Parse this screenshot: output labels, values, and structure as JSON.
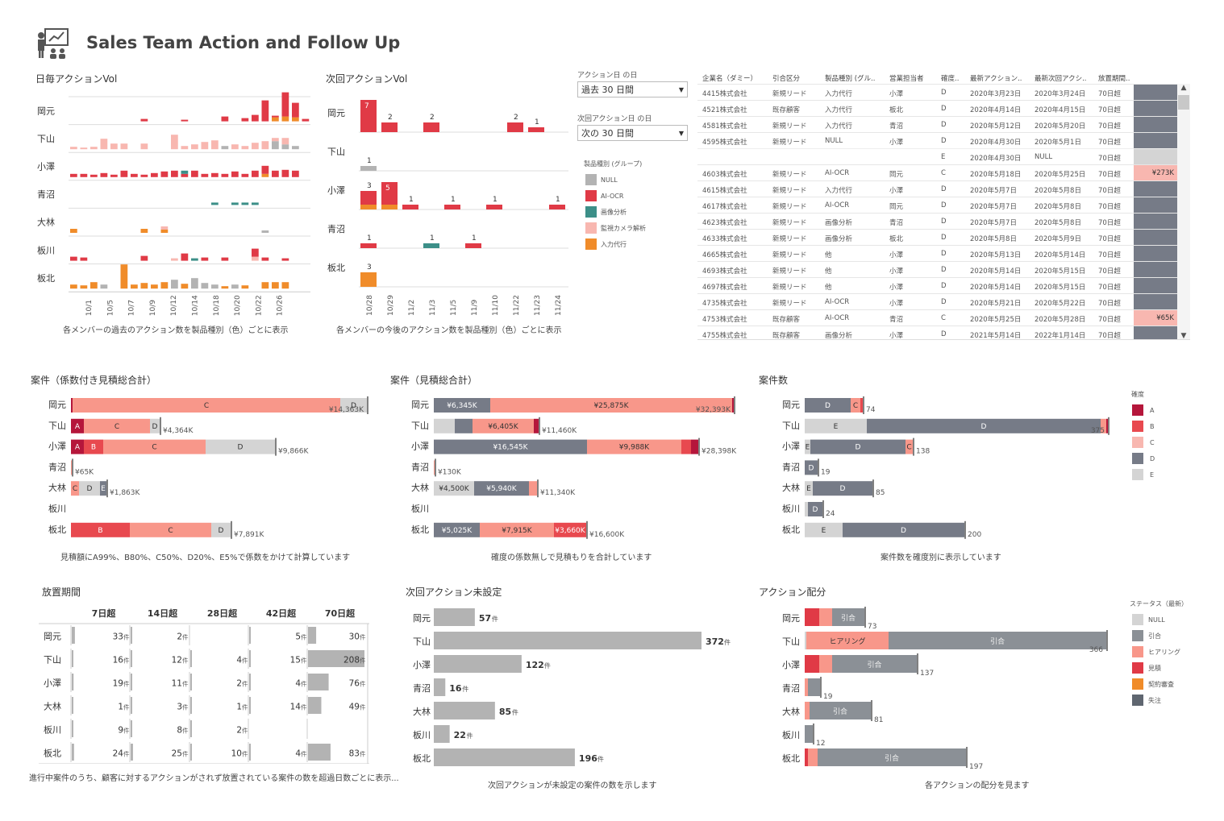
{
  "header": {
    "title": "Sales Team Action and Follow Up"
  },
  "colors": {
    "null": "#b3b3b3",
    "ai_ocr": "#e03a46",
    "image": "#3c8f88",
    "camera": "#f8b7b0",
    "input": "#f08c2a",
    "rankA": "#b5163b",
    "rankB": "#e8494f",
    "rankC": "#f8978a",
    "rankD": "#767b87",
    "rankE": "#d4d4d4",
    "bar_gray": "#b3b3b3",
    "status_hiring": "#f8978a",
    "status_hikiai": "#8b9096"
  },
  "members": [
    "岡元",
    "下山",
    "小澤",
    "青沼",
    "大林",
    "板川",
    "板北"
  ],
  "daily": {
    "title": "日毎アクションVol",
    "caption": "各メンバーの過去のアクション数を製品種別（色）ごとに表示",
    "dates": [
      "10/1",
      "10/5",
      "10/7",
      "10/9",
      "10/12",
      "10/14",
      "10/18",
      "10/20",
      "10/22",
      "10/26"
    ]
  },
  "next": {
    "title": "次回アクションVol",
    "caption": "各メンバーの今後のアクション数を製品種別（色）ごとに表示",
    "dates": [
      "10/28",
      "10/29",
      "11/2",
      "11/3",
      "11/5",
      "11/9",
      "11/10",
      "11/22",
      "11/23",
      "11/24"
    ],
    "labels": [
      [
        [
          "7",
          0
        ],
        [
          "2",
          1
        ],
        [
          "2",
          3
        ],
        [
          "2",
          7
        ],
        [
          "1",
          8
        ]
      ],
      [
        [
          "1",
          0
        ]
      ],
      [
        [
          "3",
          0
        ],
        [
          "5",
          1
        ],
        [
          "1",
          2
        ],
        [
          "1",
          4
        ],
        [
          "1",
          6
        ],
        [
          "1",
          9
        ]
      ],
      [
        [
          "1",
          0
        ],
        [
          "1",
          3
        ],
        [
          "1",
          5
        ]
      ],
      [
        [
          "3",
          0
        ]
      ]
    ]
  },
  "filters": {
    "action_label": "アクション日 の日",
    "action_value": "過去 30 日間",
    "next_label": "次回アクション日 の日",
    "next_value": "次の 30 日間",
    "legend_title": "製品種別 (グループ)",
    "legend": [
      "NULL",
      "AI-OCR",
      "画像分析",
      "監視カメラ解析",
      "入力代行"
    ]
  },
  "table": {
    "headers": [
      "企業名（ダミー）",
      "引合区分",
      "製品種別 (グル..",
      "営業担当者",
      "確度..",
      "最新アクション..",
      "最新次回アクシ..",
      "放置期間.."
    ],
    "rows": [
      [
        "4415株式会社",
        "新規リード",
        "入力代行",
        "小澤",
        "D",
        "2020年3月23日",
        "2020年3月24日",
        "70日超",
        ""
      ],
      [
        "4521株式会社",
        "既存顧客",
        "入力代行",
        "板北",
        "D",
        "2020年4月14日",
        "2020年4月15日",
        "70日超",
        ""
      ],
      [
        "4581株式会社",
        "新規リード",
        "入力代行",
        "青沼",
        "D",
        "2020年5月12日",
        "2020年5月20日",
        "70日超",
        ""
      ],
      [
        "4595株式会社",
        "新規リード",
        "NULL",
        "小澤",
        "D",
        "2020年4月30日",
        "2020年5月1日",
        "70日超",
        ""
      ],
      [
        "",
        "",
        "",
        "",
        "E",
        "2020年4月30日",
        "NULL",
        "70日超",
        ""
      ],
      [
        "4603株式会社",
        "新規リード",
        "AI-OCR",
        "岡元",
        "C",
        "2020年5月18日",
        "2020年5月25日",
        "70日超",
        "¥273K"
      ],
      [
        "4615株式会社",
        "新規リード",
        "入力代行",
        "小澤",
        "D",
        "2020年5月7日",
        "2020年5月8日",
        "70日超",
        ""
      ],
      [
        "4617株式会社",
        "新規リード",
        "AI-OCR",
        "岡元",
        "D",
        "2020年5月7日",
        "2020年5月8日",
        "70日超",
        ""
      ],
      [
        "4623株式会社",
        "新規リード",
        "画像分析",
        "青沼",
        "D",
        "2020年5月7日",
        "2020年5月8日",
        "70日超",
        ""
      ],
      [
        "4633株式会社",
        "新規リード",
        "画像分析",
        "板北",
        "D",
        "2020年5月8日",
        "2020年5月9日",
        "70日超",
        ""
      ],
      [
        "4665株式会社",
        "新規リード",
        "他",
        "小澤",
        "D",
        "2020年5月13日",
        "2020年5月14日",
        "70日超",
        ""
      ],
      [
        "4693株式会社",
        "新規リード",
        "他",
        "小澤",
        "D",
        "2020年5月14日",
        "2020年5月15日",
        "70日超",
        ""
      ],
      [
        "4697株式会社",
        "新規リード",
        "他",
        "小澤",
        "D",
        "2020年5月14日",
        "2020年5月15日",
        "70日超",
        ""
      ],
      [
        "4735株式会社",
        "新規リード",
        "AI-OCR",
        "小澤",
        "D",
        "2020年5月21日",
        "2020年5月22日",
        "70日超",
        ""
      ],
      [
        "4753株式会社",
        "既存顧客",
        "AI-OCR",
        "青沼",
        "C",
        "2020年5月25日",
        "2020年5月28日",
        "70日超",
        "¥65K"
      ],
      [
        "4755株式会社",
        "既存顧客",
        "画像分析",
        "小澤",
        "D",
        "2021年5月14日",
        "2022年1月14日",
        "70日超",
        ""
      ]
    ]
  },
  "weighted": {
    "title": "案件（係数付き見積総合計）",
    "caption": "見積額にA99%、B80%、C50%、D20%、E5%で係数をかけて計算しています",
    "totals": [
      "¥14,363K",
      "¥4,364K",
      "¥9,866K",
      "¥65K",
      "¥1,863K",
      "",
      "¥7,891K"
    ]
  },
  "total": {
    "title": "案件（見積総合計）",
    "caption": "確度の係数無しで見積もりを合計しています",
    "totals": [
      "¥32,393K",
      "¥11,460K",
      "¥28,398K",
      "¥130K",
      "¥11,340K",
      "",
      "¥16,600K"
    ],
    "inner": [
      [
        "¥6,345K",
        "¥25,875K"
      ],
      [
        "¥6,405K"
      ],
      [
        "¥16,545K",
        "¥9,988K"
      ],
      [],
      [
        "¥4,500K",
        "¥5,940K"
      ],
      [],
      [
        "¥5,025K",
        "¥7,915K",
        "¥3,660K"
      ]
    ]
  },
  "count": {
    "title": "案件数",
    "caption": "案件数を確度別に表示しています",
    "totals": [
      "74",
      "375",
      "138",
      "19",
      "85",
      "24",
      "200"
    ],
    "legend_title": "確度",
    "legend": [
      "A",
      "B",
      "C",
      "D",
      "E"
    ]
  },
  "idle": {
    "title": "放置期間",
    "caption": "進行中案件のうち、顧客に対するアクションがされず放置されている案件の数を超過日数ごとに表示...",
    "cols": [
      "7日超",
      "14日超",
      "28日超",
      "42日超",
      "70日超"
    ],
    "unit": "件",
    "rows": [
      [
        "33",
        "2",
        "",
        "5",
        "30"
      ],
      [
        "16",
        "12",
        "4",
        "15",
        "208"
      ],
      [
        "19",
        "11",
        "2",
        "4",
        "76"
      ],
      [
        "1",
        "3",
        "1",
        "14",
        "49"
      ],
      [
        "9",
        "8",
        "2",
        "",
        ""
      ],
      [
        "24",
        "25",
        "10",
        "4",
        "83"
      ]
    ],
    "members": [
      "岡元",
      "下山",
      "小澤",
      "大林",
      "板川",
      "板北"
    ]
  },
  "unset": {
    "title": "次回アクション未設定",
    "caption": "次回アクションが未設定の案件の数を示します",
    "values": [
      "57",
      "372",
      "122",
      "16",
      "85",
      "22",
      "196"
    ],
    "unit": "件"
  },
  "alloc": {
    "title": "アクション配分",
    "caption": "各アクションの配分を見ます",
    "totals": [
      "73",
      "366",
      "137",
      "19",
      "81",
      "12",
      "197"
    ],
    "legend_title": "ステータス（最新）",
    "legend": [
      "NULL",
      "引合",
      "ヒアリング",
      "見積",
      "契約審査",
      "失注"
    ],
    "hikiai": "引合",
    "hiring": "ヒアリング"
  }
}
